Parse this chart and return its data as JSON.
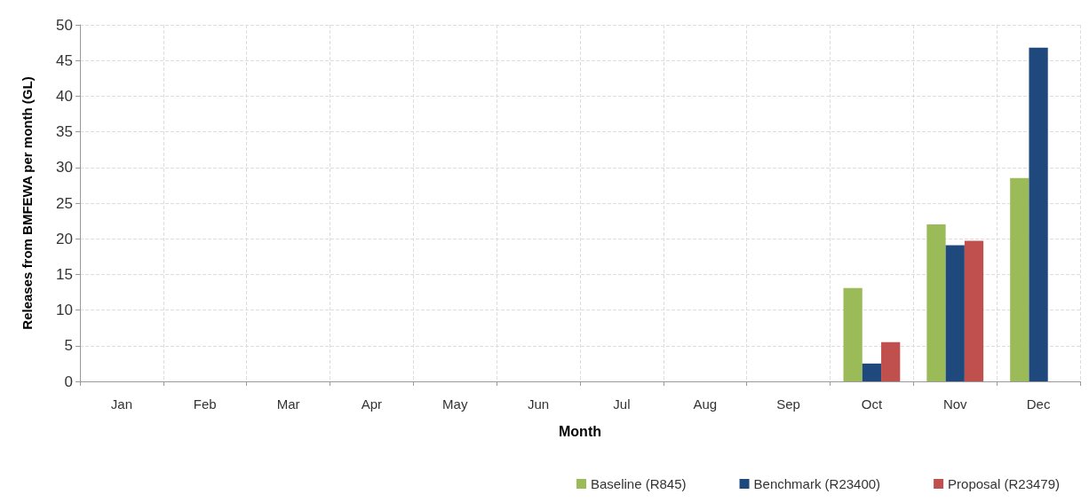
{
  "chart_data": {
    "type": "bar",
    "xlabel": "Month",
    "ylabel": "Releases from BMFEWA per month (GL)",
    "categories": [
      "Jan",
      "Feb",
      "Mar",
      "Apr",
      "May",
      "Jun",
      "Jul",
      "Aug",
      "Sep",
      "Oct",
      "Nov",
      "Dec"
    ],
    "series": [
      {
        "name": "Baseline (R845)",
        "color": "#9bbb59",
        "values": [
          0,
          0,
          0,
          0,
          0,
          0,
          0,
          0,
          0,
          13.1,
          22.0,
          28.5
        ]
      },
      {
        "name": "Benchmark (R23400)",
        "color": "#1f497d",
        "values": [
          0,
          0,
          0,
          0,
          0,
          0,
          0,
          0,
          0,
          2.5,
          19.1,
          46.8
        ]
      },
      {
        "name": "Proposal (R23479)",
        "color": "#c0504d",
        "values": [
          0,
          0,
          0,
          0,
          0,
          0,
          0,
          0,
          0,
          5.5,
          19.7,
          0
        ]
      }
    ],
    "ylim": [
      0,
      50
    ],
    "yticks": [
      0,
      5,
      10,
      15,
      20,
      25,
      30,
      35,
      40,
      45,
      50
    ],
    "grid": true,
    "legend": "bottom right"
  }
}
